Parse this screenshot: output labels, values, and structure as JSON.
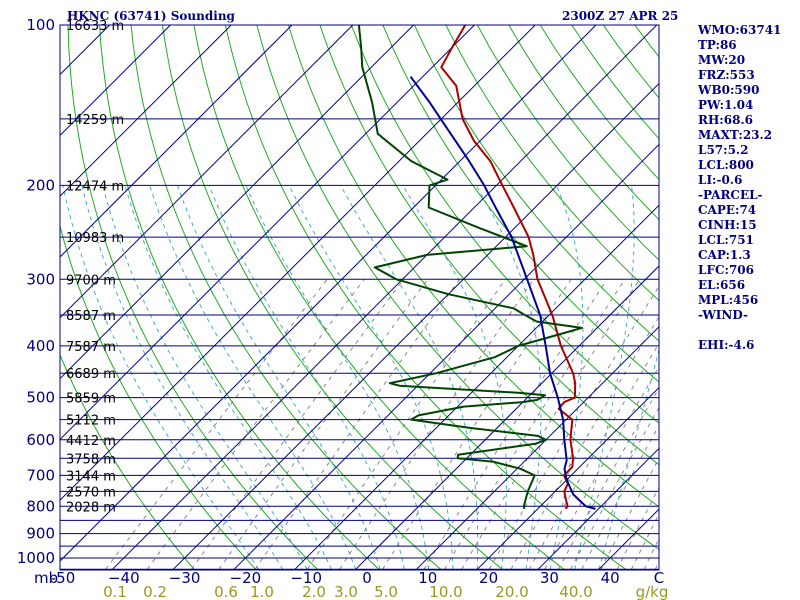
{
  "header": {
    "station_title": "HKNC (63741) Sounding",
    "valid_time": "2300Z 27 APR 25"
  },
  "indices": [
    "WMO:63741",
    "TP:86",
    "MW:20",
    "FRZ:553",
    "WB0:590",
    "PW:1.04",
    "RH:68.6",
    "MAXT:23.2",
    "L57:5.2",
    "LCL:800",
    "LI:-0.6",
    "-PARCEL-",
    "CAPE:74",
    "CINH:15",
    "LCL:751",
    "CAP:1.3",
    "LFC:706",
    "EL:656",
    "MPL:456",
    "-WIND-",
    "",
    "EHI:-4.6"
  ],
  "chart_data": {
    "type": "line",
    "title": "HKNC (63741) Sounding",
    "xlabel": "",
    "ylabel": "mb",
    "x_unit_label": "C",
    "y_scale": "log",
    "ylim": [
      1000,
      100
    ],
    "xlim": [
      -50,
      50
    ],
    "grid": true,
    "pressure_labels": [
      100,
      200,
      300,
      400,
      500,
      600,
      700,
      800,
      900,
      1000
    ],
    "temperature_tick_labels": [
      {
        "t": -50,
        "label": "-50"
      },
      {
        "t": -40,
        "label": "−40"
      },
      {
        "t": -30,
        "label": "−30"
      },
      {
        "t": -20,
        "label": "−20"
      },
      {
        "t": -10,
        "label": "−10"
      },
      {
        "t": 0,
        "label": "0"
      },
      {
        "t": 10,
        "label": "10"
      },
      {
        "t": 20,
        "label": "20"
      },
      {
        "t": 30,
        "label": "30"
      },
      {
        "t": 40,
        "label": "40"
      }
    ],
    "mixing_ratio_labels": [
      "0.1",
      "0.2",
      "0.6",
      "1.0",
      "2.0",
      "3.0",
      "5.0",
      "10.0",
      "20.0",
      "40.0",
      "g/kg"
    ],
    "height_labels": [
      {
        "p": 100,
        "label": "16633 m"
      },
      {
        "p": 150,
        "label": "14259 m"
      },
      {
        "p": 200,
        "label": "12474 m"
      },
      {
        "p": 250,
        "label": "10983 m"
      },
      {
        "p": 300,
        "label": "9700 m"
      },
      {
        "p": 350,
        "label": "8587 m"
      },
      {
        "p": 400,
        "label": "7587 m"
      },
      {
        "p": 450,
        "label": "6689 m"
      },
      {
        "p": 500,
        "label": "5859 m"
      },
      {
        "p": 550,
        "label": "5112 m"
      },
      {
        "p": 600,
        "label": "4412 m"
      },
      {
        "p": 650,
        "label": "3758 m"
      },
      {
        "p": 700,
        "label": "3144 m"
      },
      {
        "p": 750,
        "label": "2570 m"
      },
      {
        "p": 800,
        "label": "2028 m"
      }
    ],
    "series": [
      {
        "name": "Temperature",
        "color": "#aa0000",
        "points": [
          [
            809,
            24.6
          ],
          [
            800,
            24.5
          ],
          [
            775,
            23.0
          ],
          [
            750,
            21.5
          ],
          [
            725,
            20.8
          ],
          [
            700,
            18.8
          ],
          [
            675,
            18.8
          ],
          [
            650,
            17.5
          ],
          [
            600,
            14.0
          ],
          [
            550,
            11.0
          ],
          [
            525,
            7.0
          ],
          [
            510,
            6.8
          ],
          [
            500,
            7.8
          ],
          [
            470,
            5.5
          ],
          [
            450,
            3.5
          ],
          [
            400,
            -3.0
          ],
          [
            350,
            -9.5
          ],
          [
            300,
            -17.8
          ],
          [
            270,
            -22.5
          ],
          [
            250,
            -26.2
          ],
          [
            220,
            -33.5
          ],
          [
            200,
            -39.0
          ],
          [
            180,
            -45.0
          ],
          [
            165,
            -51.0
          ],
          [
            150,
            -56.5
          ],
          [
            130,
            -63.0
          ],
          [
            120,
            -68.5
          ],
          [
            110,
            -70.0
          ],
          [
            100,
            -71.5
          ]
        ]
      },
      {
        "name": "Dewpoint",
        "color": "#004400",
        "points": [
          [
            809,
            17.8
          ],
          [
            800,
            17.3
          ],
          [
            750,
            15.5
          ],
          [
            700,
            14.0
          ],
          [
            680,
            10.5
          ],
          [
            660,
            5.0
          ],
          [
            650,
            -1.5
          ],
          [
            640,
            -2.0
          ],
          [
            610,
            9.0
          ],
          [
            600,
            10.0
          ],
          [
            590,
            8.0
          ],
          [
            570,
            -4.5
          ],
          [
            550,
            -15.5
          ],
          [
            540,
            -15.0
          ],
          [
            520,
            -9.0
          ],
          [
            510,
            0.0
          ],
          [
            505,
            2.0
          ],
          [
            495,
            2.5
          ],
          [
            490,
            -2.0
          ],
          [
            475,
            -23.0
          ],
          [
            470,
            -25.0
          ],
          [
            450,
            -19.0
          ],
          [
            420,
            -12.0
          ],
          [
            400,
            -10.0
          ],
          [
            380,
            -5.0
          ],
          [
            370,
            -2.5
          ],
          [
            360,
            -11.0
          ],
          [
            350,
            -14.0
          ],
          [
            340,
            -17.0
          ],
          [
            320,
            -30.0
          ],
          [
            300,
            -41.0
          ],
          [
            285,
            -46.5
          ],
          [
            270,
            -40.0
          ],
          [
            260,
            -25.0
          ],
          [
            240,
            -36.0
          ],
          [
            220,
            -47.5
          ],
          [
            200,
            -51.0
          ],
          [
            195,
            -49.0
          ],
          [
            180,
            -58.0
          ],
          [
            160,
            -68.0
          ],
          [
            140,
            -74.0
          ],
          [
            120,
            -81.5
          ],
          [
            110,
            -85.0
          ],
          [
            100,
            -89.0
          ]
        ]
      },
      {
        "name": "Parcel",
        "color": "#000099",
        "points": [
          [
            809,
            29.5
          ],
          [
            800,
            27.5
          ],
          [
            780,
            25.5
          ],
          [
            760,
            23.5
          ],
          [
            751,
            22.8
          ],
          [
            720,
            20.5
          ],
          [
            706,
            19.5
          ],
          [
            680,
            17.8
          ],
          [
            656,
            16.8
          ],
          [
            600,
            13.0
          ],
          [
            550,
            9.5
          ],
          [
            500,
            5.0
          ],
          [
            450,
            -0.3
          ],
          [
            400,
            -5.5
          ],
          [
            350,
            -11.5
          ],
          [
            300,
            -19.5
          ],
          [
            250,
            -29.0
          ],
          [
            220,
            -36.5
          ],
          [
            200,
            -42.0
          ],
          [
            180,
            -48.5
          ],
          [
            160,
            -56.0
          ],
          [
            140,
            -64.5
          ],
          [
            125,
            -72.0
          ]
        ]
      }
    ]
  }
}
